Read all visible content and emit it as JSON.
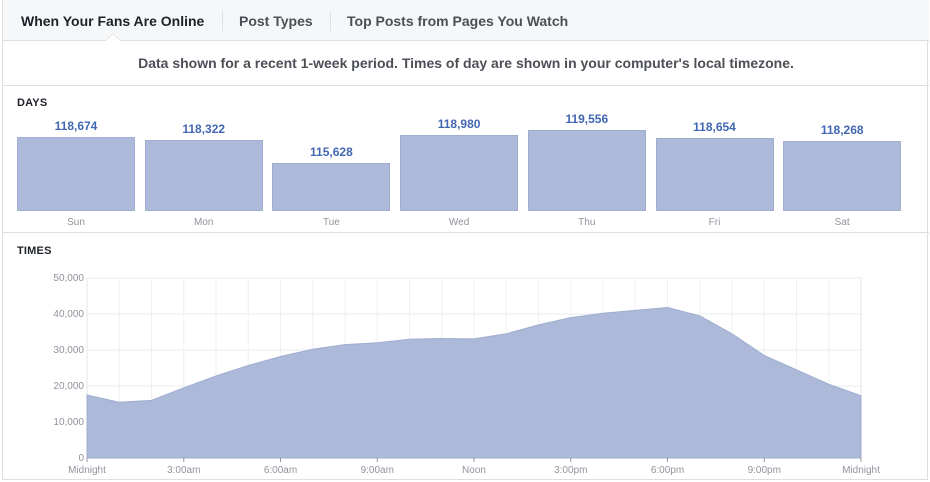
{
  "tabs": [
    {
      "label": "When Your Fans Are Online",
      "active": true
    },
    {
      "label": "Post Types",
      "active": false
    },
    {
      "label": "Top Posts from Pages You Watch",
      "active": false
    }
  ],
  "notice": "Data shown for a recent 1-week period. Times of day are shown in your computer's local timezone.",
  "colors": {
    "bar": "#adb9d8",
    "value_text": "#4267b2",
    "area": "#adb9d8"
  },
  "chart_data": [
    {
      "type": "bar",
      "section_label": "DAYS",
      "categories": [
        "Sun",
        "Mon",
        "Tue",
        "Wed",
        "Thu",
        "Fri",
        "Sat"
      ],
      "value_labels": [
        "118,674",
        "118,322",
        "115,628",
        "118,980",
        "119,556",
        "118,654",
        "118,268"
      ],
      "values": [
        118674,
        118322,
        115628,
        118980,
        119556,
        118654,
        118268
      ]
    },
    {
      "type": "area",
      "section_label": "TIMES",
      "x_tick_labels": [
        "Midnight",
        "3:00am",
        "6:00am",
        "9:00am",
        "Noon",
        "3:00pm",
        "6:00pm",
        "9:00pm",
        "Midnight"
      ],
      "x_ticks": [
        0,
        3,
        6,
        9,
        12,
        15,
        18,
        21,
        24
      ],
      "y_tick_labels": [
        "50,000",
        "40,000",
        "30,000",
        "20,000",
        "10,000",
        "0"
      ],
      "y_ticks": [
        50000,
        40000,
        30000,
        20000,
        10000,
        0
      ],
      "ylim": [
        0,
        50000
      ],
      "xlim": [
        0,
        24
      ],
      "grid": true,
      "x": [
        0,
        1,
        2,
        3,
        4,
        5,
        6,
        7,
        8,
        9,
        10,
        11,
        12,
        13,
        14,
        15,
        16,
        17,
        18,
        19,
        20,
        21,
        22,
        23,
        24
      ],
      "y": [
        17500,
        15500,
        16000,
        19500,
        22800,
        25700,
        28200,
        30200,
        31500,
        32000,
        33000,
        33200,
        33100,
        34500,
        37000,
        39000,
        40200,
        41000,
        41800,
        39500,
        34500,
        28500,
        24500,
        20500,
        17300
      ]
    }
  ]
}
